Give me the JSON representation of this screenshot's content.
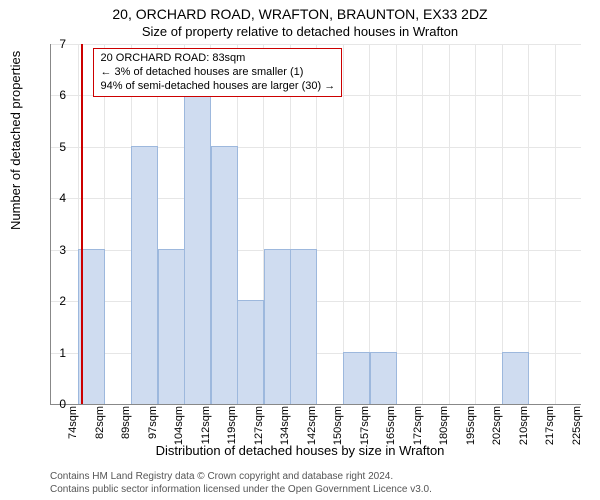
{
  "title": "20, ORCHARD ROAD, WRAFTON, BRAUNTON, EX33 2DZ",
  "subtitle": "Size of property relative to detached houses in Wrafton",
  "ylabel": "Number of detached properties",
  "xlabel": "Distribution of detached houses by size in Wrafton",
  "footer_line1": "Contains HM Land Registry data © Crown copyright and database right 2024.",
  "footer_line2": "Contains public sector information licensed under the Open Government Licence v3.0.",
  "chart": {
    "type": "histogram",
    "ylim": [
      0,
      7
    ],
    "yticks": [
      0,
      1,
      2,
      3,
      4,
      5,
      6,
      7
    ],
    "categories": [
      "74sqm",
      "82sqm",
      "89sqm",
      "97sqm",
      "104sqm",
      "112sqm",
      "119sqm",
      "127sqm",
      "134sqm",
      "142sqm",
      "150sqm",
      "157sqm",
      "165sqm",
      "172sqm",
      "180sqm",
      "195sqm",
      "202sqm",
      "210sqm",
      "217sqm",
      "225sqm"
    ],
    "values": [
      0,
      3,
      0,
      5,
      3,
      6,
      5,
      2,
      3,
      3,
      0,
      1,
      1,
      0,
      0,
      0,
      0,
      1,
      0,
      0
    ],
    "bar_color": "#cfdcf0",
    "bar_border": "#9db8dd",
    "grid_color": "#e6e6e6",
    "axis_color": "#888888",
    "bar_width_ratio": 0.95,
    "marker": {
      "position_category_index": 1,
      "offset_within_bin": 0.15,
      "color": "#cc0000"
    },
    "annotation": {
      "line1": "20 ORCHARD ROAD: 83sqm",
      "line2": "← 3% of detached houses are smaller (1)",
      "line3": "94% of semi-detached houses are larger (30) →",
      "border_color": "#cc0000",
      "background_color": "#ffffff",
      "fontsize": 11
    },
    "title_fontsize": 14,
    "label_fontsize": 13,
    "tick_fontsize": 12,
    "plot_bg": "#ffffff"
  }
}
